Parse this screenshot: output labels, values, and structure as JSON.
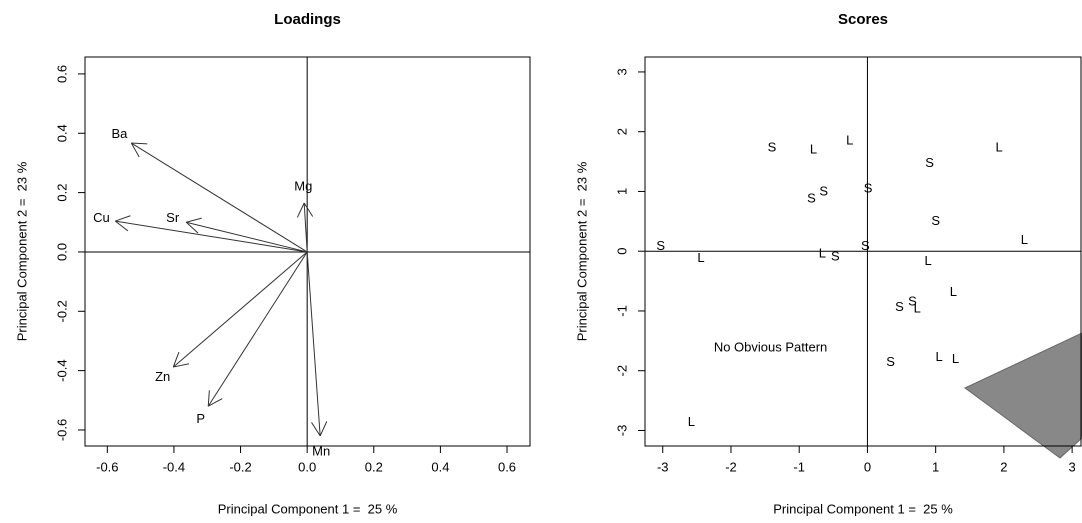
{
  "chart_data": [
    {
      "type": "arrows",
      "title": "Loadings",
      "xlabel": "Principal Component 1 =  25 %",
      "ylabel": "Principal Component 2 =  23 %",
      "names": [
        "Ba",
        "Cu",
        "Sr",
        "Mg",
        "Zn",
        "P",
        "Mn"
      ],
      "x": [
        -0.528,
        -0.576,
        -0.363,
        -0.009,
        -0.402,
        -0.297,
        0.039
      ],
      "y": [
        0.367,
        0.104,
        0.1,
        0.165,
        -0.388,
        -0.52,
        -0.62
      ],
      "color": "#333333",
      "xlim": [
        -0.667,
        0.669
      ],
      "ylim": [
        -0.654,
        0.657
      ],
      "xticks": [
        -0.6,
        -0.4,
        -0.2,
        {
          "value": 0,
          "label": "0.0"
        },
        0.2,
        0.4,
        0.6
      ],
      "yticks": [
        -0.6,
        -0.4,
        -0.2,
        {
          "value": 0,
          "label": "0.0"
        },
        0.2,
        0.4,
        0.6
      ],
      "zero_lines": true
    },
    {
      "type": "text-scatter",
      "title": "Scores",
      "xlabel": "Principal Component 1 =  25 %",
      "ylabel": "Principal Component 2 =  23 %",
      "labels": [
        "S",
        "L",
        "S",
        "L",
        "L",
        "S",
        "S",
        "S",
        "S",
        "L",
        "S",
        "L",
        "S",
        "L",
        "S",
        "L",
        "L",
        "S",
        "S",
        "L",
        "S",
        "L",
        "L",
        "L"
      ],
      "x": [
        -3.03,
        -2.44,
        -1.4,
        -0.79,
        -0.26,
        -0.82,
        -0.64,
        0.01,
        0.91,
        1.93,
        1.0,
        2.3,
        -0.03,
        -0.66,
        -0.47,
        0.89,
        1.26,
        0.47,
        0.66,
        0.73,
        0.34,
        1.05,
        1.29,
        -2.58
      ],
      "y": [
        0.08,
        -0.12,
        1.73,
        1.69,
        1.84,
        0.87,
        0.99,
        1.04,
        1.47,
        1.73,
        0.5,
        0.18,
        0.08,
        -0.05,
        -0.1,
        -0.17,
        -0.69,
        -0.94,
        -0.85,
        -0.97,
        -1.86,
        -1.78,
        -1.81,
        -2.87
      ],
      "annotation": "No Obvious Pattern",
      "annotation_x": -1.42,
      "annotation_y": -1.62,
      "xlim": [
        -3.26,
        3.13
      ],
      "ylim": [
        -3.26,
        3.25
      ],
      "xticks": [
        -3,
        -2,
        -1,
        0,
        1,
        2,
        3
      ],
      "yticks": [
        -3,
        -2,
        -1,
        0,
        1,
        2,
        3
      ],
      "zero_lines": true
    }
  ]
}
